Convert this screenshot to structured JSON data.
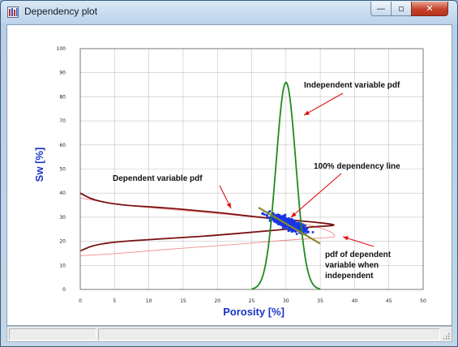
{
  "window": {
    "title": "Dependency plot",
    "min_glyph": "—",
    "max_glyph": "▫",
    "close_glyph": "✕"
  },
  "colors": {
    "x_label": "#1b33c8",
    "y_label": "#1b33c8",
    "dependent_pdf": "#7a1010",
    "independent_pdf": "#1e8a1e",
    "dependency_line": "#8a8a2a",
    "pdf_when_independent": "#f08a8a",
    "scatter": "#1836e6",
    "arrows": "#e01010"
  },
  "annotations": {
    "independent": "Independent variable pdf",
    "dependent": "Dependent variable pdf",
    "dependency_line": "100% dependency line",
    "when_independent_1": "pdf of dependent",
    "when_independent_2": "variable when",
    "when_independent_3": "independent"
  },
  "chart_data": {
    "type": "scatter",
    "xlabel": "Porosity [%]",
    "ylabel": "Sw [%]",
    "xlim": [
      0,
      50
    ],
    "ylim": [
      0,
      100
    ],
    "xticks": [
      "0",
      "5",
      "10",
      "15",
      "20",
      "25",
      "30",
      "35",
      "40",
      "45",
      "50"
    ],
    "yticks": [
      "0",
      "10",
      "20",
      "30",
      "40",
      "50",
      "60",
      "70",
      "80",
      "90",
      "100"
    ],
    "grid": true,
    "series": [
      {
        "name": "Independent variable pdf",
        "kind": "gaussian_curve_over_x",
        "center": 30,
        "peak": 86,
        "base": 0,
        "x": [
          25,
          26,
          27,
          28,
          29,
          29.5,
          30,
          30.5,
          31,
          32,
          33,
          34,
          35
        ]
      },
      {
        "name": "Dependent variable pdf",
        "kind": "pdf_curve_over_y",
        "points": [
          [
            0,
            40
          ],
          [
            2,
            37
          ],
          [
            6,
            35
          ],
          [
            12,
            34
          ],
          [
            20,
            32
          ],
          [
            26,
            30
          ],
          [
            30,
            29
          ],
          [
            34,
            28
          ],
          [
            37,
            27
          ],
          [
            37,
            26.5
          ],
          [
            34,
            26
          ],
          [
            30,
            25
          ],
          [
            26,
            24
          ],
          [
            20,
            22.5
          ],
          [
            12,
            21
          ],
          [
            6,
            20
          ],
          [
            2,
            18.5
          ],
          [
            0,
            16
          ]
        ]
      },
      {
        "name": "pdf of dependent variable when independent",
        "kind": "pdf_curve_over_y",
        "points": [
          [
            0,
            38
          ],
          [
            6,
            35
          ],
          [
            14,
            33
          ],
          [
            22,
            31
          ],
          [
            30,
            29
          ],
          [
            36,
            25
          ],
          [
            37.5,
            22
          ],
          [
            36,
            21.5
          ],
          [
            30,
            20.5
          ],
          [
            22,
            18.5
          ],
          [
            14,
            17
          ],
          [
            6,
            15
          ],
          [
            0,
            14
          ]
        ]
      },
      {
        "name": "100% dependency line",
        "kind": "line",
        "points": [
          [
            26,
            34
          ],
          [
            35,
            19
          ]
        ]
      },
      {
        "name": "Samples",
        "kind": "point_cloud",
        "center": [
          30.2,
          27.5
        ],
        "slope": -1.5,
        "spread_along": 4.2,
        "spread_across": 1.3,
        "count": 520
      }
    ]
  }
}
